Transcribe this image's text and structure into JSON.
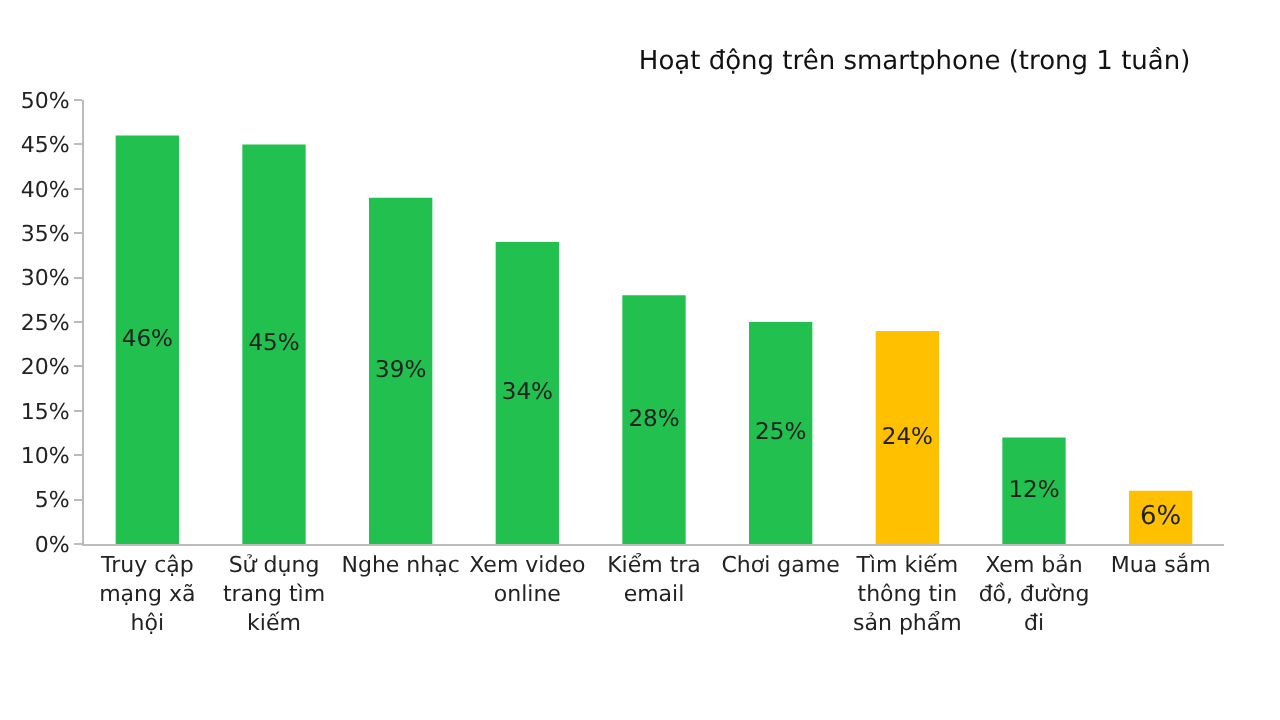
{
  "chart_data": {
    "type": "bar",
    "title": "Hoạt động trên smartphone (trong 1 tuần)",
    "categories": [
      "Truy cập mạng xã hội",
      "Sử dụng trang tìm kiếm",
      "Nghe nhạc",
      "Xem video online",
      "Kiểm tra email",
      "Chơi game",
      "Tìm kiếm thông tin sản phẩm",
      "Xem bản đồ, đường đi",
      "Mua sắm"
    ],
    "values": [
      46,
      45,
      39,
      34,
      28,
      25,
      24,
      12,
      6
    ],
    "value_labels": [
      "46%",
      "45%",
      "39%",
      "34%",
      "28%",
      "25%",
      "24%",
      "12%",
      "6%"
    ],
    "colors": [
      "#22c04f",
      "#22c04f",
      "#22c04f",
      "#22c04f",
      "#22c04f",
      "#22c04f",
      "#ffc000",
      "#22c04f",
      "#ffc000"
    ],
    "ylim": [
      0,
      50
    ],
    "yticks": [
      {
        "value": 0,
        "label": "0%"
      },
      {
        "value": 5,
        "label": "5%"
      },
      {
        "value": 10,
        "label": "10%"
      },
      {
        "value": 15,
        "label": "15%"
      },
      {
        "value": 20,
        "label": "20%"
      },
      {
        "value": 25,
        "label": "25%"
      },
      {
        "value": 30,
        "label": "30%"
      },
      {
        "value": 35,
        "label": "35%"
      },
      {
        "value": 40,
        "label": "40%"
      },
      {
        "value": 45,
        "label": "45%"
      },
      {
        "value": 50,
        "label": "50%"
      }
    ],
    "grid": false
  }
}
